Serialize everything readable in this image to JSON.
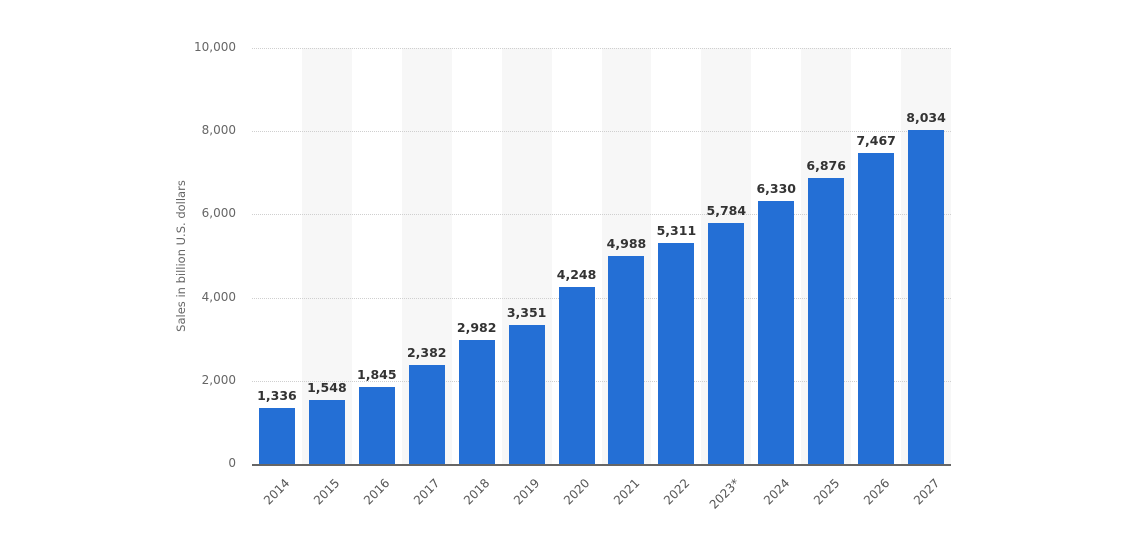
{
  "chart_data": {
    "type": "bar",
    "title": "",
    "xlabel": "",
    "ylabel": "Sales in billion U.S. dollars",
    "ylim": [
      0,
      10000
    ],
    "yticks": [
      "0",
      "2,000",
      "4,000",
      "6,000",
      "8,000",
      "10,000"
    ],
    "grid": true,
    "legend": null,
    "categories": [
      "2014",
      "2015",
      "2016",
      "2017",
      "2018",
      "2019",
      "2020",
      "2021",
      "2022",
      "2023*",
      "2024",
      "2025",
      "2026",
      "2027"
    ],
    "values": [
      1336,
      1548,
      1845,
      2382,
      2982,
      3351,
      4248,
      4988,
      5311,
      5784,
      6330,
      6876,
      7467,
      8034
    ],
    "value_labels": [
      "1,336",
      "1,548",
      "1,845",
      "2,382",
      "2,982",
      "3,351",
      "4,248",
      "4,988",
      "5,311",
      "5,784",
      "6,330",
      "6,876",
      "7,467",
      "8,034"
    ],
    "bar_color": "#246fd5"
  }
}
